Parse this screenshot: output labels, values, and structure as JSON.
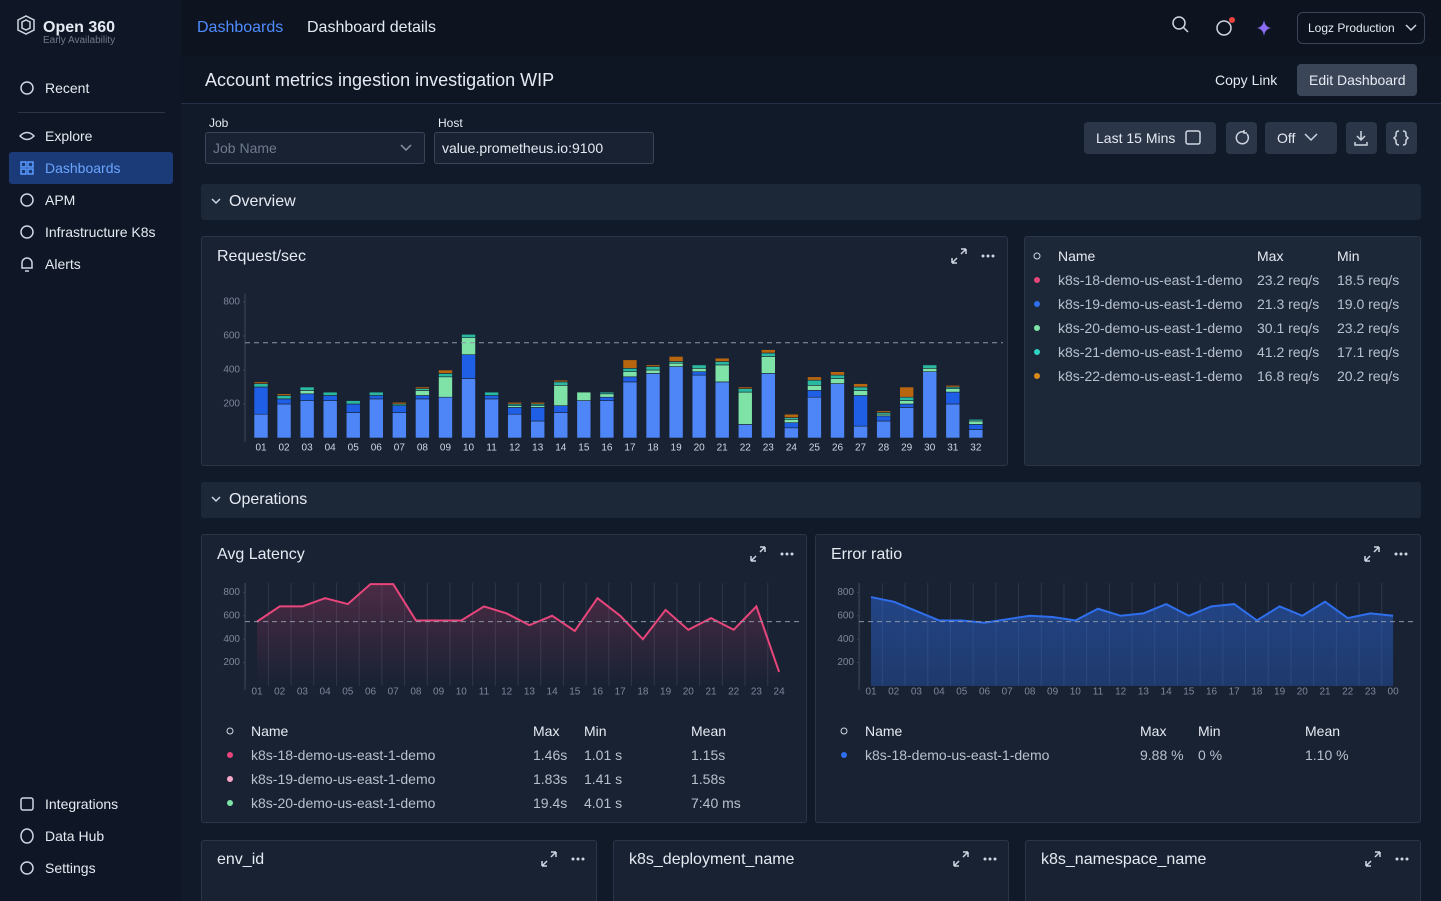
{
  "brand": {
    "name": "Open 360",
    "tag": "Early Availability"
  },
  "nav": {
    "top": [
      "Recent"
    ],
    "main": [
      "Explore",
      "Dashboards",
      "APM",
      "Infrastructure K8s",
      "Alerts"
    ],
    "bottom": [
      "Integrations",
      "Data Hub",
      "Settings"
    ]
  },
  "breadcrumb": {
    "parent": "Dashboards",
    "current": "Dashboard details"
  },
  "account": "Logz Production",
  "dashboard": {
    "title": "Account metrics ingestion investigation WIP",
    "copy_link": "Copy Link",
    "edit": "Edit Dashboard"
  },
  "filters": [
    {
      "label": "Job",
      "placeholder": "Job Name"
    },
    {
      "label": "Host",
      "value": "value.prometheus.io:9100"
    }
  ],
  "time_range": "Last 15 Mins",
  "refresh": "Off",
  "sections": [
    "Overview",
    "Operations"
  ],
  "chart_data": [
    {
      "type": "bar",
      "stacked": true,
      "title": "Request/sec",
      "categories": [
        "01",
        "02",
        "03",
        "04",
        "05",
        "06",
        "07",
        "08",
        "09",
        "10",
        "11",
        "12",
        "13",
        "14",
        "15",
        "16",
        "17",
        "18",
        "19",
        "20",
        "21",
        "22",
        "23",
        "24",
        "25",
        "26",
        "27",
        "28",
        "29",
        "30",
        "31",
        "32"
      ],
      "series": [
        {
          "color": "#4f86f7",
          "values": [
            140,
            200,
            220,
            220,
            150,
            230,
            150,
            230,
            240,
            350,
            230,
            140,
            100,
            150,
            220,
            220,
            330,
            380,
            420,
            370,
            330,
            80,
            380,
            60,
            240,
            320,
            70,
            100,
            180,
            390,
            200,
            50
          ]
        },
        {
          "color": "#1f5fe6",
          "values": [
            160,
            30,
            40,
            30,
            50,
            20,
            40,
            20,
            0,
            140,
            20,
            40,
            80,
            40,
            0,
            20,
            30,
            0,
            0,
            20,
            0,
            0,
            0,
            30,
            40,
            0,
            180,
            30,
            20,
            0,
            70,
            30
          ]
        },
        {
          "color": "#7fe3a8",
          "values": [
            0,
            0,
            20,
            0,
            0,
            0,
            0,
            30,
            120,
            100,
            0,
            10,
            10,
            120,
            50,
            20,
            30,
            20,
            20,
            20,
            100,
            190,
            100,
            20,
            30,
            30,
            30,
            10,
            20,
            20,
            20,
            20
          ]
        },
        {
          "color": "#2bb8a0",
          "values": [
            20,
            20,
            20,
            20,
            20,
            20,
            10,
            10,
            20,
            20,
            20,
            10,
            10,
            20,
            0,
            10,
            20,
            20,
            10,
            20,
            20,
            20,
            20,
            10,
            30,
            20,
            20,
            10,
            20,
            20,
            10,
            10
          ]
        },
        {
          "color": "#b8650f",
          "values": [
            10,
            10,
            0,
            0,
            0,
            0,
            10,
            10,
            20,
            0,
            0,
            10,
            10,
            10,
            0,
            0,
            50,
            10,
            30,
            0,
            20,
            10,
            20,
            20,
            20,
            20,
            20,
            10,
            60,
            0,
            10,
            0
          ]
        }
      ],
      "ylim": [
        0,
        850
      ],
      "yticks": [
        200,
        400,
        600,
        800
      ],
      "reference_line": 560
    },
    {
      "type": "line",
      "title": "Avg Latency",
      "categories": [
        "01",
        "02",
        "03",
        "04",
        "05",
        "06",
        "07",
        "08",
        "09",
        "10",
        "11",
        "12",
        "13",
        "14",
        "15",
        "16",
        "17",
        "18",
        "19",
        "20",
        "21",
        "22",
        "23",
        "24"
      ],
      "series": [
        {
          "color": "#e8457a",
          "values": [
            550,
            680,
            680,
            750,
            700,
            870,
            870,
            560,
            560,
            560,
            680,
            620,
            520,
            600,
            470,
            750,
            600,
            400,
            650,
            480,
            580,
            480,
            680,
            120
          ]
        }
      ],
      "ylim": [
        0,
        880
      ],
      "yticks": [
        200,
        400,
        600,
        800
      ],
      "reference_line": 550
    },
    {
      "type": "area",
      "title": "Error ratio",
      "categories": [
        "01",
        "02",
        "03",
        "04",
        "05",
        "06",
        "07",
        "08",
        "09",
        "10",
        "11",
        "12",
        "13",
        "14",
        "15",
        "16",
        "17",
        "18",
        "19",
        "20",
        "21",
        "22",
        "23",
        "00"
      ],
      "series": [
        {
          "color": "#2f6fed",
          "values": [
            760,
            720,
            640,
            560,
            560,
            540,
            570,
            600,
            590,
            560,
            660,
            600,
            620,
            700,
            600,
            680,
            700,
            560,
            680,
            600,
            720,
            580,
            620,
            600
          ]
        }
      ],
      "ylim": [
        0,
        880
      ],
      "yticks": [
        200,
        400,
        600,
        800
      ],
      "reference_line": 550
    }
  ],
  "tables": [
    {
      "columns": [
        "Name",
        "Max",
        "Min"
      ],
      "rows": [
        {
          "dot_color": "#e8457a",
          "cells": [
            "k8s-18-demo-us-east-1-demo",
            "23.2 req/s",
            "18.5 req/s"
          ]
        },
        {
          "dot_color": "#2f6fed",
          "cells": [
            "k8s-19-demo-us-east-1-demo",
            "21.3 req/s",
            "19.0 req/s"
          ]
        },
        {
          "dot_color": "#7fe3a8",
          "cells": [
            "k8s-20-demo-us-east-1-demo",
            "30.1 req/s",
            "23.2 req/s"
          ]
        },
        {
          "dot_color": "#2dd4bf",
          "cells": [
            "k8s-21-demo-us-east-1-demo",
            "41.2 req/s",
            "17.1 req/s"
          ]
        },
        {
          "dot_color": "#d98a1a",
          "cells": [
            "k8s-22-demo-us-east-1-demo",
            "16.8 req/s",
            "20.2 req/s"
          ]
        }
      ]
    },
    {
      "columns": [
        "Name",
        "Max",
        "Min",
        "Mean"
      ],
      "rows": [
        {
          "dot_color": "#e8457a",
          "cells": [
            "k8s-18-demo-us-east-1-demo",
            "1.46s",
            "1.01 s",
            "1.15s"
          ]
        },
        {
          "dot_color": "#f7a8c8",
          "cells": [
            "k8s-19-demo-us-east-1-demo",
            "1.83s",
            "1.41 s",
            "1.58s"
          ]
        },
        {
          "dot_color": "#7fe3a8",
          "cells": [
            "k8s-20-demo-us-east-1-demo",
            "19.4s",
            "4.01 s",
            "7:40 ms"
          ]
        }
      ]
    },
    {
      "columns": [
        "Name",
        "Max",
        "Min",
        "Mean"
      ],
      "rows": [
        {
          "dot_color": "#2f6fed",
          "cells": [
            "k8s-18-demo-us-east-1-demo",
            "9.88 %",
            "0 %",
            "1.10 %"
          ]
        }
      ]
    }
  ],
  "small_panels": [
    "env_id",
    "k8s_deployment_name",
    "k8s_namespace_name"
  ]
}
